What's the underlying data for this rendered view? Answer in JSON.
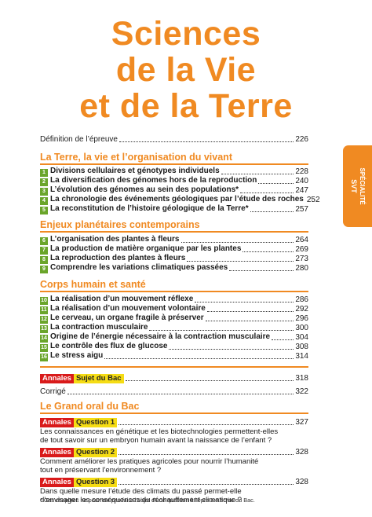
{
  "title": {
    "line1": "Sciences",
    "line2": "de la Vie",
    "line3": "et de la Terre"
  },
  "side_tab": {
    "line1": "SPÉCIALITÉ",
    "line2": "SVT"
  },
  "definition": {
    "label": "Définition de l’épreuve",
    "page": "226"
  },
  "sections": [
    {
      "title": "La Terre, la vie et l’organisation du vivant",
      "items": [
        {
          "num": "1",
          "label": "Divisions cellulaires et génotypes individuels",
          "page": "228"
        },
        {
          "num": "2",
          "label": "La diversification des génomes hors de la reproduction",
          "page": "240"
        },
        {
          "num": "3",
          "label": "L’évolution des génomes au sein des populations*",
          "page": "247"
        },
        {
          "num": "4",
          "label": "La chronologie des événements géologiques par l’étude des roches",
          "page": "252"
        },
        {
          "num": "5",
          "label": "La reconstitution de l’histoire géologique de la Terre*",
          "page": "257"
        }
      ]
    },
    {
      "title": "Enjeux planétaires contemporains",
      "items": [
        {
          "num": "6",
          "label": "L’organisation des plantes à fleurs",
          "page": "264"
        },
        {
          "num": "7",
          "label": "La production de matière organique par les plantes",
          "page": "269"
        },
        {
          "num": "8",
          "label": "La reproduction des plantes à fleurs",
          "page": "273"
        },
        {
          "num": "9",
          "label": "Comprendre les variations climatiques passées",
          "page": "280"
        }
      ]
    },
    {
      "title": "Corps humain et santé",
      "items": [
        {
          "num": "10",
          "label": "La réalisation d’un mouvement réflexe",
          "page": "286"
        },
        {
          "num": "11",
          "label": "La réalisation d’un mouvement volontaire",
          "page": "292"
        },
        {
          "num": "12",
          "label": "Le cerveau, un organe fragile à préserver",
          "page": "296"
        },
        {
          "num": "13",
          "label": "La contraction musculaire",
          "page": "300"
        },
        {
          "num": "14",
          "label": "Origine de l’énergie nécessaire à la contraction musculaire",
          "page": "304"
        },
        {
          "num": "15",
          "label": "Le contrôle des flux de glucose",
          "page": "308"
        },
        {
          "num": "16",
          "label": "Le stress aigu",
          "page": "314"
        }
      ]
    }
  ],
  "annales": {
    "badge": "Annales",
    "label": "Sujet du Bac",
    "page": "318"
  },
  "corrige": {
    "label": "Corrigé",
    "page": "322"
  },
  "grand_oral": {
    "title": "Le Grand oral du Bac",
    "questions": [
      {
        "badge": "Annales",
        "label": "Question 1",
        "page": "327",
        "line1": "Les connaissances en génétique et les biotechnologies permettent-elles",
        "line2": "de tout savoir sur un embryon humain avant la naissance de l’enfant ?"
      },
      {
        "badge": "Annales",
        "label": "Question 2",
        "page": "328",
        "line1": "Comment améliorer les pratiques agricoles pour nourrir l’humanité",
        "line2": "tout en préservant l’environnement ?"
      },
      {
        "badge": "Annales",
        "label": "Question 3",
        "page": "328",
        "line1": "Dans quelle mesure l’étude des climats du passé permet-elle",
        "line2": "d’envisager les conséquences du réchauffement climatique ?"
      }
    ]
  },
  "footnote": "* Ces chapitres ne pourront pas faire l’objet d’une question à l’épreuve écrite du Bac.",
  "colors": {
    "accent": "#f08a22",
    "chapter_green": "#6aa52a",
    "badge_red": "#d91a1a",
    "badge_yellow": "#f5dc14"
  }
}
